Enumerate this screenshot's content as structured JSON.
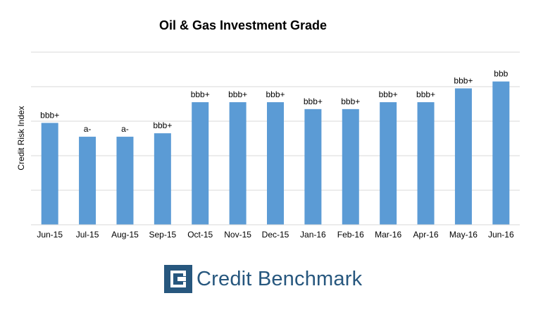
{
  "chart_data": {
    "type": "bar",
    "title": "Oil & Gas Investment Grade",
    "xlabel": "",
    "ylabel": "Credit Risk Index",
    "categories": [
      "Jun-15",
      "Jul-15",
      "Aug-15",
      "Sep-15",
      "Oct-15",
      "Nov-15",
      "Dec-15",
      "Jan-16",
      "Feb-16",
      "Mar-16",
      "Apr-16",
      "May-16",
      "Jun-16"
    ],
    "values": [
      2.95,
      2.55,
      2.55,
      2.65,
      3.55,
      3.55,
      3.55,
      3.35,
      3.35,
      3.55,
      3.55,
      3.95,
      4.15
    ],
    "data_labels": [
      "bbb+",
      "a-",
      "a-",
      "bbb+",
      "bbb+",
      "bbb+",
      "bbb+",
      "bbb+",
      "bbb+",
      "bbb+",
      "bbb+",
      "bbb+",
      "bbb"
    ],
    "ylim": [
      0,
      5
    ],
    "y_tick_labels_shown": false,
    "grid": true,
    "legend": "none",
    "bar_color": "#5b9bd5",
    "grid_color": "#d9d9d9"
  },
  "brand": {
    "name": "Credit Benchmark",
    "logo_icon": "credit-benchmark-logo-icon",
    "color": "#27577e"
  }
}
